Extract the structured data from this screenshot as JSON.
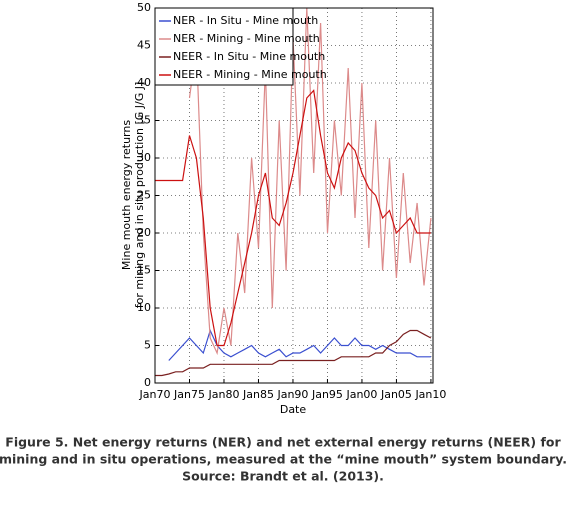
{
  "chart_data": {
    "type": "line",
    "xlabel": "Date",
    "ylabel": [
      "Mine mouth energy returns",
      "for mining and in situ production [G J/G J]"
    ],
    "caption": [
      "Figure 5. Net energy returns (NER) and net external energy returns (NEER) for",
      "mining and in situ operations, measured at the “mine mouth” system boundary.",
      "Source: Brandt et al. (2013)."
    ],
    "x": [
      1970,
      1971,
      1972,
      1973,
      1974,
      1975,
      1976,
      1977,
      1978,
      1979,
      1980,
      1981,
      1982,
      1983,
      1984,
      1985,
      1986,
      1987,
      1988,
      1989,
      1990,
      1991,
      1992,
      1993,
      1994,
      1995,
      1996,
      1997,
      1998,
      1999,
      2000,
      2001,
      2002,
      2003,
      2004,
      2005,
      2006,
      2007,
      2008,
      2009,
      2010
    ],
    "xlim": [
      1970,
      2010.3
    ],
    "xticks": [
      {
        "value": 1970,
        "label": "Jan70"
      },
      {
        "value": 1975,
        "label": "Jan75"
      },
      {
        "value": 1980,
        "label": "Jan80"
      },
      {
        "value": 1985,
        "label": "Jan85"
      },
      {
        "value": 1990,
        "label": "Jan90"
      },
      {
        "value": 1995,
        "label": "Jan95"
      },
      {
        "value": 2000,
        "label": "Jan00"
      },
      {
        "value": 2005,
        "label": "Jan05"
      },
      {
        "value": 2010,
        "label": "Jan10"
      }
    ],
    "ylim": [
      0,
      50
    ],
    "yticks": [
      0,
      5,
      10,
      15,
      20,
      25,
      30,
      35,
      40,
      45,
      50
    ],
    "grid": true,
    "legend": "upper-left",
    "series": [
      {
        "name": "NER - In Situ - Mine mouth",
        "color": "#3a4fd0",
        "values": [
          null,
          null,
          3,
          4,
          5,
          6,
          5,
          4,
          7,
          5,
          4,
          3.5,
          4,
          4.5,
          5,
          4,
          3.5,
          4,
          4.5,
          3.5,
          4,
          4,
          4.5,
          5,
          4,
          5,
          6,
          5,
          5,
          6,
          5,
          5,
          4.5,
          5,
          4.5,
          4,
          4,
          4,
          3.5,
          3.5,
          3.5
        ]
      },
      {
        "name": "NER - Mining - Mine mouth",
        "color": "#dc8a8a",
        "values": [
          null,
          null,
          null,
          null,
          null,
          38,
          45,
          20,
          6,
          4,
          10,
          5,
          20,
          12,
          30,
          18,
          42,
          10,
          35,
          15,
          46,
          25,
          50,
          28,
          48,
          20,
          35,
          25,
          42,
          22,
          40,
          18,
          35,
          15,
          30,
          14,
          28,
          16,
          24,
          13,
          22
        ]
      },
      {
        "name": "NEER - In Situ - Mine mouth",
        "color": "#7a2020",
        "values": [
          1,
          1,
          1.2,
          1.5,
          1.5,
          2,
          2,
          2,
          2.5,
          2.5,
          2.5,
          2.5,
          2.5,
          2.5,
          2.5,
          2.5,
          2.5,
          2.5,
          3,
          3,
          3,
          3,
          3,
          3,
          3,
          3,
          3,
          3.5,
          3.5,
          3.5,
          3.5,
          3.5,
          4,
          4,
          5,
          5.5,
          6.5,
          7,
          7,
          6.5,
          6
        ]
      },
      {
        "name": "NEER - Mining - Mine mouth",
        "color": "#cc1111",
        "values": [
          27,
          27,
          27,
          27,
          27,
          33,
          30,
          22,
          10,
          5,
          5,
          8,
          12,
          16,
          20,
          25,
          28,
          22,
          21,
          24,
          28,
          33,
          38,
          39,
          33,
          28,
          26,
          30,
          32,
          31,
          28,
          26,
          25,
          22,
          23,
          20,
          21,
          22,
          20,
          20,
          20
        ]
      }
    ]
  }
}
